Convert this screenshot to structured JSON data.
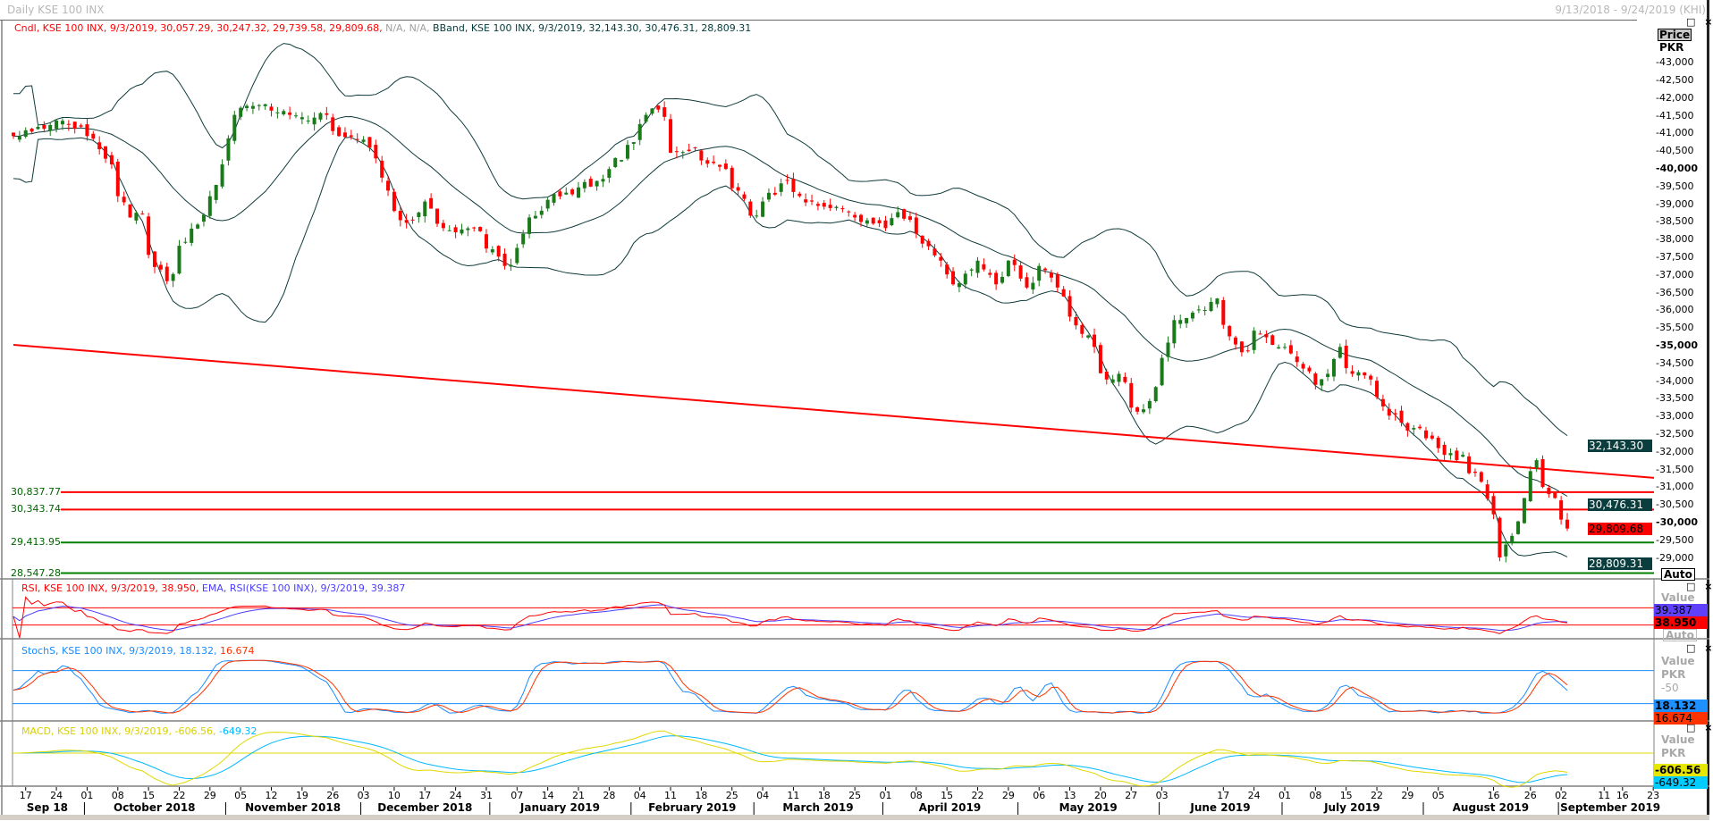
{
  "window": {
    "title": "Daily KSE 100 INX",
    "date_range": "9/13/2018 - 9/24/2019 (KHI)",
    "window_controls": "□ ×"
  },
  "main_panel": {
    "legend_cndl": "Cndl, KSE 100 INX, 9/3/2019, 30,057.29, 30,247.32, 29,739.58, 29,809.68,",
    "legend_na": "N/A, N/A,",
    "legend_bband": "BBand, KSE 100 INX, 9/3/2019, 32,143.30, 30,476.31, 28,809.31",
    "axis_header": "Price",
    "axis_unit": "PKR",
    "auto_label": "Auto",
    "y_ticks": [
      "43,000",
      "42,500",
      "42,000",
      "41,500",
      "41,000",
      "40,500",
      "40,000",
      "39,500",
      "39,000",
      "38,500",
      "38,000",
      "37,500",
      "37,000",
      "36,500",
      "36,000",
      "35,500",
      "35,000",
      "34,500",
      "34,000",
      "33,500",
      "33,000",
      "32,500",
      "32,000",
      "31,500",
      "31,000",
      "30,500",
      "30,000",
      "29,500",
      "29,000"
    ],
    "value_boxes": [
      {
        "label": "32,143.30",
        "value": 32143.3,
        "bg": "#0a3d3d",
        "fg": "#ffffff"
      },
      {
        "label": "30,476.31",
        "value": 30476.31,
        "bg": "#0a3d3d",
        "fg": "#ffffff"
      },
      {
        "label": "29,809.68",
        "value": 29809.68,
        "bg": "#ff0000",
        "fg": "#000000"
      },
      {
        "label": "28,809.31",
        "value": 28809.31,
        "bg": "#0a3d3d",
        "fg": "#ffffff"
      }
    ],
    "levels": [
      {
        "label": "30,837.77",
        "value": 30837.77,
        "color": "#ff0000"
      },
      {
        "label": "30,343.74",
        "value": 30343.74,
        "color": "#ff0000"
      },
      {
        "label": "29,413.95",
        "value": 29413.95,
        "color": "#008000"
      },
      {
        "label": "28,547.28",
        "value": 28547.28,
        "color": "#008000"
      }
    ],
    "trendline": {
      "start": [
        "2018-09-13",
        35000
      ],
      "end_at_right_edge": 31240,
      "color": "#ff0000"
    }
  },
  "rsi_panel": {
    "legend_rsi": "RSI, KSE 100 INX, 9/3/2019, 38.950,",
    "legend_ema": "EMA, RSI(KSE 100 INX), 9/3/2019, 39.387",
    "value_label": "Value",
    "auto_label": "Auto",
    "ema_value": "39.387",
    "rsi_value": "38.950",
    "levels": [
      70,
      30
    ]
  },
  "stoch_panel": {
    "legend_main": "StochS, KSE 100 INX, 9/3/2019, 18.132,",
    "legend_d": "16.674",
    "value_label": "Value",
    "unit_label": "PKR",
    "mid_label": "-50",
    "k_value": "18.132",
    "d_value": "16.674",
    "levels": [
      80,
      20
    ]
  },
  "macd_panel": {
    "legend_main": "MACD, KSE 100 INX, 9/3/2019, -606.56,",
    "legend_signal": "-649.32",
    "value_label": "Value",
    "unit_label": "PKR",
    "macd_value": "-606.56",
    "signal_value": "-649.32"
  },
  "chart_data": {
    "type": "candlestick",
    "title": "Daily KSE 100 INX",
    "ylabel": "Price (PKR)",
    "ylim": [
      28500,
      43000
    ],
    "last_candle": {
      "date": "2019-09-03",
      "open": 30057.29,
      "high": 30247.32,
      "low": 29739.58,
      "close": 29809.68
    },
    "bollinger_last": {
      "upper": 32143.3,
      "middle": 30476.31,
      "lower": 28809.31
    },
    "close_anchors": [
      [
        "2018-09-13",
        40900
      ],
      [
        "2018-09-24",
        41340
      ],
      [
        "2018-10-01",
        40900
      ],
      [
        "2018-10-05",
        40100
      ],
      [
        "2018-10-10",
        38600
      ],
      [
        "2018-10-12",
        38700
      ],
      [
        "2018-10-16",
        37200
      ],
      [
        "2018-10-18",
        36800
      ],
      [
        "2018-10-22",
        37800
      ],
      [
        "2018-10-25",
        38400
      ],
      [
        "2018-10-29",
        39200
      ],
      [
        "2018-10-31",
        40100
      ],
      [
        "2018-11-02",
        41500
      ],
      [
        "2018-11-05",
        41700
      ],
      [
        "2018-11-09",
        41800
      ],
      [
        "2018-11-15",
        41500
      ],
      [
        "2018-11-20",
        41340
      ],
      [
        "2018-11-23",
        41500
      ],
      [
        "2018-11-27",
        40900
      ],
      [
        "2018-12-03",
        40800
      ],
      [
        "2018-12-05",
        40270
      ],
      [
        "2018-12-07",
        39360
      ],
      [
        "2018-12-12",
        38450
      ],
      [
        "2018-12-17",
        39050
      ],
      [
        "2018-12-20",
        38300
      ],
      [
        "2018-12-27",
        38300
      ],
      [
        "2019-01-01",
        37700
      ],
      [
        "2019-01-03",
        37230
      ],
      [
        "2019-01-07",
        37740
      ],
      [
        "2019-01-09",
        38600
      ],
      [
        "2019-01-14",
        39100
      ],
      [
        "2019-01-21",
        39450
      ],
      [
        "2019-01-28",
        39970
      ],
      [
        "2019-02-01",
        40730
      ],
      [
        "2019-02-05",
        41500
      ],
      [
        "2019-02-07",
        41650
      ],
      [
        "2019-02-11",
        40430
      ],
      [
        "2019-02-15",
        40580
      ],
      [
        "2019-02-19",
        40120
      ],
      [
        "2019-02-22",
        39970
      ],
      [
        "2019-02-26",
        39360
      ],
      [
        "2019-02-28",
        38650
      ],
      [
        "2019-03-04",
        39050
      ],
      [
        "2019-03-08",
        39660
      ],
      [
        "2019-03-14",
        39050
      ],
      [
        "2019-03-20",
        38900
      ],
      [
        "2019-03-25",
        38600
      ],
      [
        "2019-04-01",
        38300
      ],
      [
        "2019-04-03",
        38750
      ],
      [
        "2019-04-08",
        38140
      ],
      [
        "2019-04-12",
        37380
      ],
      [
        "2019-04-16",
        36710
      ],
      [
        "2019-04-22",
        37380
      ],
      [
        "2019-04-25",
        36710
      ],
      [
        "2019-04-29",
        37380
      ],
      [
        "2019-05-02",
        36620
      ],
      [
        "2019-05-06",
        37230
      ],
      [
        "2019-05-09",
        36620
      ],
      [
        "2019-05-14",
        35550
      ],
      [
        "2019-05-17",
        34940
      ],
      [
        "2019-05-21",
        34020
      ],
      [
        "2019-05-23",
        34180
      ],
      [
        "2019-05-28",
        33110
      ],
      [
        "2019-05-30",
        33410
      ],
      [
        "2019-06-03",
        34630
      ],
      [
        "2019-06-05",
        35700
      ],
      [
        "2019-06-11",
        36000
      ],
      [
        "2019-06-14",
        36310
      ],
      [
        "2019-06-18",
        35240
      ],
      [
        "2019-06-20",
        34790
      ],
      [
        "2019-06-24",
        35400
      ],
      [
        "2019-06-27",
        35000
      ],
      [
        "2019-07-01",
        34940
      ],
      [
        "2019-07-04",
        34330
      ],
      [
        "2019-07-08",
        33870
      ],
      [
        "2019-07-10",
        34180
      ],
      [
        "2019-07-12",
        34940
      ],
      [
        "2019-07-16",
        34180
      ],
      [
        "2019-07-19",
        34020
      ],
      [
        "2019-07-23",
        33260
      ],
      [
        "2019-07-26",
        32800
      ],
      [
        "2019-07-30",
        32650
      ],
      [
        "2019-08-02",
        32350
      ],
      [
        "2019-08-06",
        31890
      ],
      [
        "2019-08-08",
        31740
      ],
      [
        "2019-08-09",
        31890
      ],
      [
        "2019-08-14",
        31130
      ],
      [
        "2019-08-16",
        30210
      ],
      [
        "2019-08-19",
        28990
      ],
      [
        "2019-08-21",
        29600
      ],
      [
        "2019-08-23",
        30670
      ],
      [
        "2019-08-26",
        31430
      ],
      [
        "2019-08-27",
        31740
      ],
      [
        "2019-08-28",
        30980
      ],
      [
        "2019-08-30",
        30670
      ],
      [
        "2019-09-02",
        30060
      ],
      [
        "2019-09-03",
        29809.68
      ]
    ],
    "x_ticks": [
      {
        "date": "2018-09-17",
        "label": "17"
      },
      {
        "date": "2018-09-24",
        "label": "24"
      },
      {
        "date": "2018-10-01",
        "label": "01"
      },
      {
        "date": "2018-10-08",
        "label": "08"
      },
      {
        "date": "2018-10-15",
        "label": "15"
      },
      {
        "date": "2018-10-22",
        "label": "22"
      },
      {
        "date": "2018-10-29",
        "label": "29"
      },
      {
        "date": "2018-11-05",
        "label": "05"
      },
      {
        "date": "2018-11-12",
        "label": "12"
      },
      {
        "date": "2018-11-19",
        "label": "19"
      },
      {
        "date": "2018-11-26",
        "label": "26"
      },
      {
        "date": "2018-12-03",
        "label": "03"
      },
      {
        "date": "2018-12-10",
        "label": "10"
      },
      {
        "date": "2018-12-17",
        "label": "17"
      },
      {
        "date": "2018-12-24",
        "label": "24"
      },
      {
        "date": "2018-12-31",
        "label": "31"
      },
      {
        "date": "2019-01-07",
        "label": "07"
      },
      {
        "date": "2019-01-14",
        "label": "14"
      },
      {
        "date": "2019-01-21",
        "label": "21"
      },
      {
        "date": "2019-01-28",
        "label": "28"
      },
      {
        "date": "2019-02-04",
        "label": "04"
      },
      {
        "date": "2019-02-11",
        "label": "11"
      },
      {
        "date": "2019-02-18",
        "label": "18"
      },
      {
        "date": "2019-02-25",
        "label": "25"
      },
      {
        "date": "2019-03-04",
        "label": "04"
      },
      {
        "date": "2019-03-11",
        "label": "11"
      },
      {
        "date": "2019-03-18",
        "label": "18"
      },
      {
        "date": "2019-03-25",
        "label": "25"
      },
      {
        "date": "2019-04-01",
        "label": "01"
      },
      {
        "date": "2019-04-08",
        "label": "08"
      },
      {
        "date": "2019-04-15",
        "label": "15"
      },
      {
        "date": "2019-04-22",
        "label": "22"
      },
      {
        "date": "2019-04-29",
        "label": "29"
      },
      {
        "date": "2019-05-06",
        "label": "06"
      },
      {
        "date": "2019-05-13",
        "label": "13"
      },
      {
        "date": "2019-05-20",
        "label": "20"
      },
      {
        "date": "2019-05-27",
        "label": "27"
      },
      {
        "date": "2019-06-03",
        "label": "03"
      },
      {
        "date": "2019-06-17",
        "label": "17"
      },
      {
        "date": "2019-06-24",
        "label": "24"
      },
      {
        "date": "2019-07-01",
        "label": "01"
      },
      {
        "date": "2019-07-08",
        "label": "08"
      },
      {
        "date": "2019-07-15",
        "label": "15"
      },
      {
        "date": "2019-07-22",
        "label": "22"
      },
      {
        "date": "2019-07-29",
        "label": "29"
      },
      {
        "date": "2019-08-05",
        "label": "05"
      },
      {
        "date": "2019-08-16",
        "label": "16"
      },
      {
        "date": "2019-08-26",
        "label": "26"
      },
      {
        "date": "2019-09-02",
        "label": "02"
      },
      {
        "date": "2019-09-11",
        "label": "11"
      },
      {
        "date": "2019-09-16",
        "label": "16"
      },
      {
        "date": "2019-09-23",
        "label": "23"
      }
    ],
    "months": [
      {
        "start": "2018-09-13",
        "end": "2018-09-28",
        "label": "Sep 18"
      },
      {
        "start": "2018-10-01",
        "end": "2018-10-31",
        "label": "October 2018"
      },
      {
        "start": "2018-11-01",
        "end": "2018-11-30",
        "label": "November 2018"
      },
      {
        "start": "2018-12-01",
        "end": "2018-12-31",
        "label": "December 2018"
      },
      {
        "start": "2019-01-01",
        "end": "2019-01-31",
        "label": "January 2019"
      },
      {
        "start": "2019-02-01",
        "end": "2019-02-28",
        "label": "February 2019"
      },
      {
        "start": "2019-03-01",
        "end": "2019-03-29",
        "label": "March 2019"
      },
      {
        "start": "2019-04-01",
        "end": "2019-04-30",
        "label": "April 2019"
      },
      {
        "start": "2019-05-01",
        "end": "2019-05-31",
        "label": "May 2019"
      },
      {
        "start": "2019-06-01",
        "end": "2019-06-28",
        "label": "June 2019"
      },
      {
        "start": "2019-07-01",
        "end": "2019-07-31",
        "label": "July 2019"
      },
      {
        "start": "2019-08-01",
        "end": "2019-08-30",
        "label": "August 2019"
      },
      {
        "start": "2019-09-01",
        "end": "2019-09-24",
        "label": "September 2019"
      }
    ],
    "colors": {
      "up": "#1a7a1a",
      "down": "#ff0000",
      "bands": "#0f3b3b",
      "rsi": "#ff0000",
      "rsi_ema": "#4a3cff",
      "stoch_k": "#1a8cff",
      "stoch_d": "#ff3300",
      "macd": "#e0d800",
      "signal": "#00b8ff"
    }
  }
}
